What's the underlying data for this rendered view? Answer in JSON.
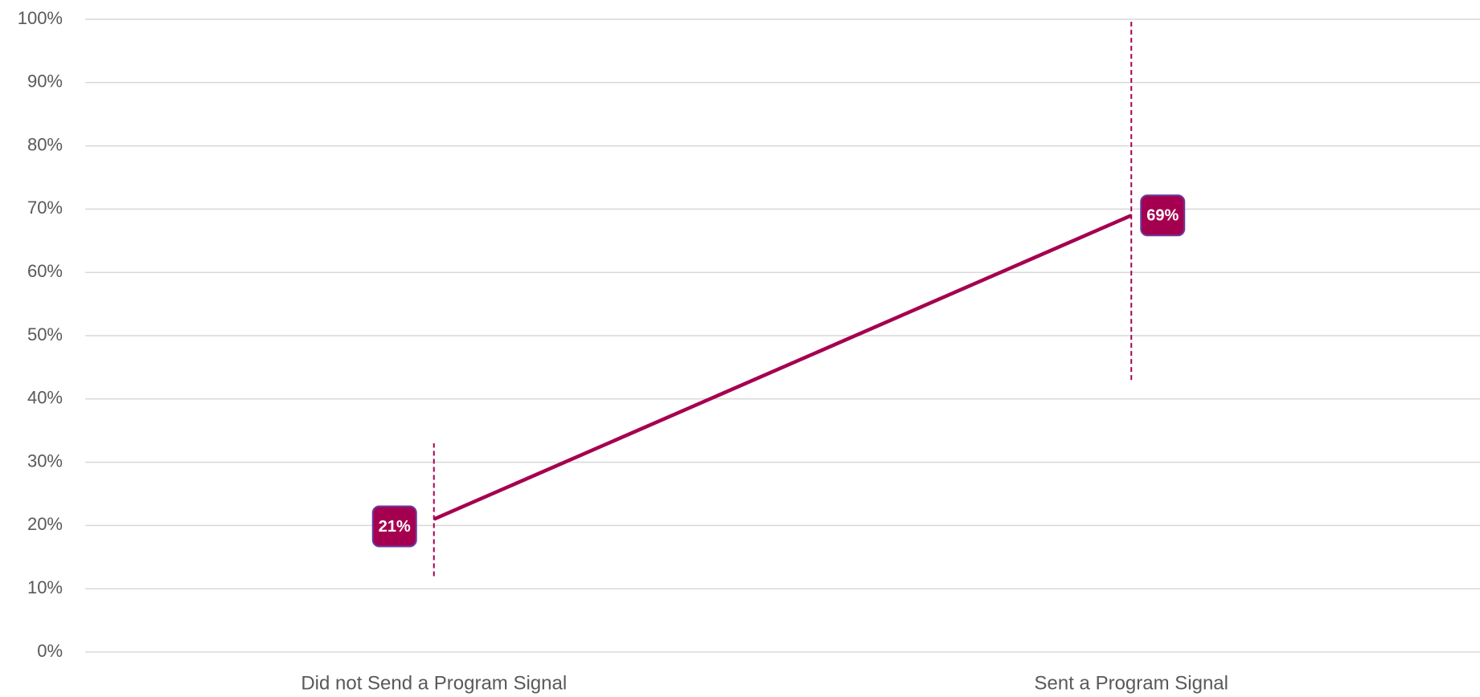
{
  "chart_data": {
    "type": "line",
    "categories": [
      "Did not Send a Program Signal",
      "Sent a Program Signal"
    ],
    "series": [
      {
        "color": "#a50050",
        "values": [
          21,
          69
        ],
        "value_labels": [
          "21%",
          "69%"
        ],
        "error_low": [
          12,
          43
        ],
        "error_high": [
          33,
          100
        ]
      }
    ],
    "ylim": [
      0,
      100
    ],
    "yticks": [
      {
        "value": 0,
        "label": "0%"
      },
      {
        "value": 10,
        "label": "10%"
      },
      {
        "value": 20,
        "label": "20%"
      },
      {
        "value": 30,
        "label": "30%"
      },
      {
        "value": 40,
        "label": "40%"
      },
      {
        "value": 50,
        "label": "50%"
      },
      {
        "value": 60,
        "label": "60%"
      },
      {
        "value": 70,
        "label": "70%"
      },
      {
        "value": 80,
        "label": "80%"
      },
      {
        "value": 90,
        "label": "90%"
      },
      {
        "value": 100,
        "label": "100%"
      }
    ],
    "grid": true
  }
}
